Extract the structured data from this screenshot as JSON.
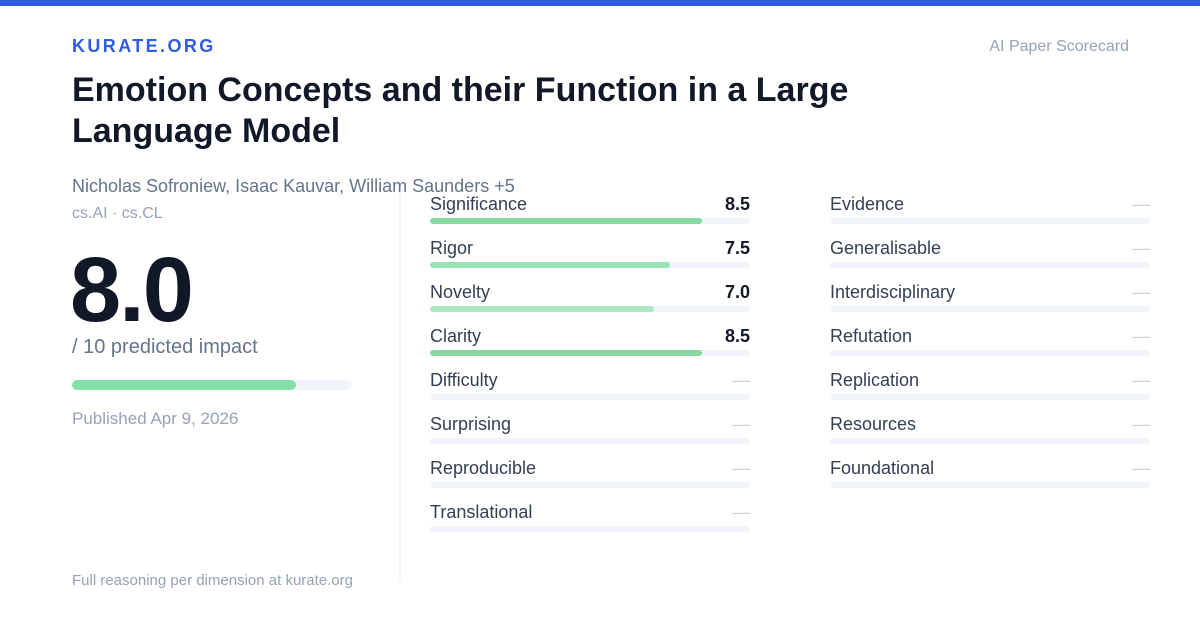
{
  "brand": "KURATE.ORG",
  "tagline": "AI Paper Scorecard",
  "paper": {
    "title": "Emotion Concepts and their Function in a Large Language Model",
    "authors": "Nicholas Sofroniew, Isaac Kauvar, William Saunders +5",
    "categories": "cs.AI · cs.CL",
    "published": "Published Apr 9, 2026"
  },
  "impact": {
    "score": "8.0",
    "score_value": 8.0,
    "max": 10,
    "label": "/ 10 predicted impact"
  },
  "dimensions_left": [
    {
      "name": "Significance",
      "value": "8.5",
      "score": 8.5,
      "color": "#86d9a2"
    },
    {
      "name": "Rigor",
      "value": "7.5",
      "score": 7.5,
      "color": "#98e2b2"
    },
    {
      "name": "Novelty",
      "value": "7.0",
      "score": 7.0,
      "color": "#a9e8c1"
    },
    {
      "name": "Clarity",
      "value": "8.5",
      "score": 8.5,
      "color": "#86d9a2"
    },
    {
      "name": "Difficulty",
      "value": "—",
      "score": null
    },
    {
      "name": "Surprising",
      "value": "—",
      "score": null
    },
    {
      "name": "Reproducible",
      "value": "—",
      "score": null
    },
    {
      "name": "Translational",
      "value": "—",
      "score": null
    }
  ],
  "dimensions_right": [
    {
      "name": "Evidence",
      "value": "—",
      "score": null
    },
    {
      "name": "Generalisable",
      "value": "—",
      "score": null
    },
    {
      "name": "Interdisciplinary",
      "value": "—",
      "score": null
    },
    {
      "name": "Refutation",
      "value": "—",
      "score": null
    },
    {
      "name": "Replication",
      "value": "—",
      "score": null
    },
    {
      "name": "Resources",
      "value": "—",
      "score": null
    },
    {
      "name": "Foundational",
      "value": "—",
      "score": null
    }
  ],
  "footer": "Full reasoning per dimension at kurate.org",
  "colors": {
    "accent": "#2f5ce0",
    "bar_fill": "#86dfa8",
    "track": "#f1f5f9"
  }
}
